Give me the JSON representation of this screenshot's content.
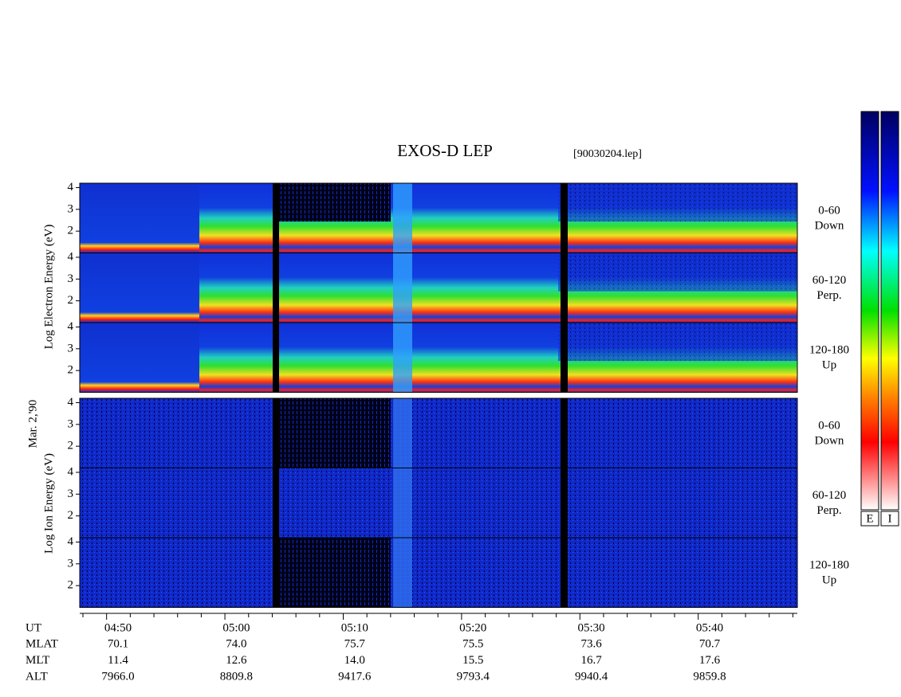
{
  "header": {
    "title": "EXOS-D LEP",
    "file": "[90030204.lep]"
  },
  "date": "Mar. 2,'90",
  "energy_axis": {
    "ylim": [
      1,
      4.2
    ],
    "yticks": [
      2,
      3,
      4
    ]
  },
  "electron": {
    "label": "Log  Electron  Energy (eV)",
    "panels": [
      {
        "angle": "0-60",
        "direction": "Down"
      },
      {
        "angle": "60-120",
        "direction": "Perp."
      },
      {
        "angle": "120-180",
        "direction": "Up"
      }
    ]
  },
  "ion": {
    "label": "Log  Ion  Energy (eV)",
    "panels": [
      {
        "angle": "0-60",
        "direction": "Down"
      },
      {
        "angle": "60-120",
        "direction": "Perp."
      },
      {
        "angle": "120-180",
        "direction": "Up"
      }
    ]
  },
  "time_axis": {
    "rows": [
      {
        "name": "UT",
        "values": [
          "04:50",
          "05:00",
          "05:10",
          "05:20",
          "05:30",
          "05:40"
        ]
      },
      {
        "name": "MLAT",
        "values": [
          "70.1",
          "74.0",
          "75.7",
          "75.5",
          "73.6",
          "70.7"
        ]
      },
      {
        "name": "MLT",
        "values": [
          "11.4",
          "12.6",
          "14.0",
          "15.5",
          "16.7",
          "17.6"
        ]
      },
      {
        "name": "ALT",
        "values": [
          "7966.0",
          "8809.8",
          "9417.6",
          "9793.4",
          "9940.4",
          "9859.8"
        ]
      }
    ]
  },
  "colorbars": [
    "E",
    "I"
  ]
}
